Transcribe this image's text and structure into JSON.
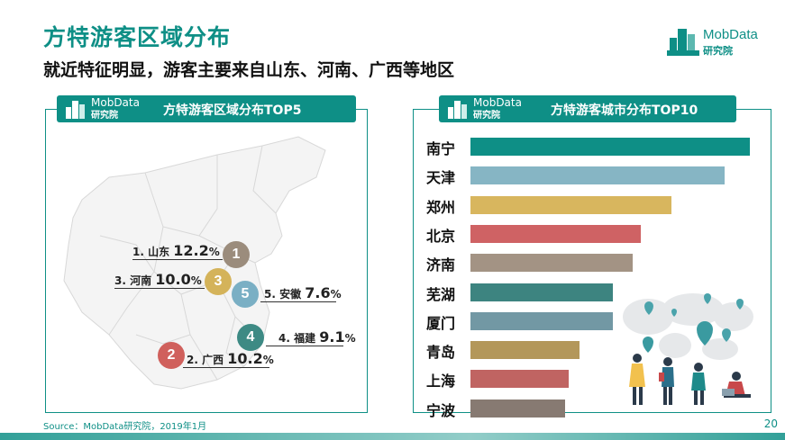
{
  "page": {
    "title": "方特游客区域分布",
    "subtitle": "就近特征明显，游客主要来自山东、河南、广西等地区",
    "brand_name": "MobData",
    "brand_sub": "研究院",
    "source": "Source：MobData研究院，2019年1月",
    "page_number": "20"
  },
  "colors": {
    "accent": "#0e8f86"
  },
  "left_panel": {
    "title": "方特游客区域分布TOP5",
    "brand_name": "MobData",
    "brand_sub": "研究院"
  },
  "right_panel": {
    "title": "方特游客城市分布TOP10",
    "brand_name": "MobData",
    "brand_sub": "研究院"
  },
  "chart_data": [
    {
      "type": "map",
      "title": "方特游客区域分布TOP5",
      "regions": [
        {
          "rank": "1",
          "label": "1. 山东",
          "value": "12.2",
          "unit": "%",
          "color": "#9b8c7c"
        },
        {
          "rank": "2",
          "label": "2. 广西",
          "value": "10.2",
          "unit": "%",
          "color": "#d0605c"
        },
        {
          "rank": "3",
          "label": "3. 河南",
          "value": "10.0",
          "unit": "%",
          "color": "#d4b35a"
        },
        {
          "rank": "4",
          "label": "4. 福建",
          "value": "9.1",
          "unit": "%",
          "color": "#3d8a84"
        },
        {
          "rank": "5",
          "label": "5. 安徽",
          "value": "7.6",
          "unit": "%",
          "color": "#7aafc4"
        }
      ]
    },
    {
      "type": "bar",
      "orientation": "horizontal",
      "title": "方特游客城市分布TOP10",
      "categories": [
        "南宁",
        "天津",
        "郑州",
        "北京",
        "济南",
        "芜湖",
        "厦门",
        "青岛",
        "上海",
        "宁波"
      ],
      "values": [
        100,
        91,
        72,
        61,
        58,
        51,
        51,
        39,
        35,
        34
      ],
      "xlim": [
        0,
        100
      ],
      "colors": [
        "#0e8f86",
        "#86b5c4",
        "#d8b65e",
        "#cf6264",
        "#a39384",
        "#3d8480",
        "#7298a4",
        "#b3975a",
        "#c06462",
        "#877a72"
      ]
    }
  ]
}
